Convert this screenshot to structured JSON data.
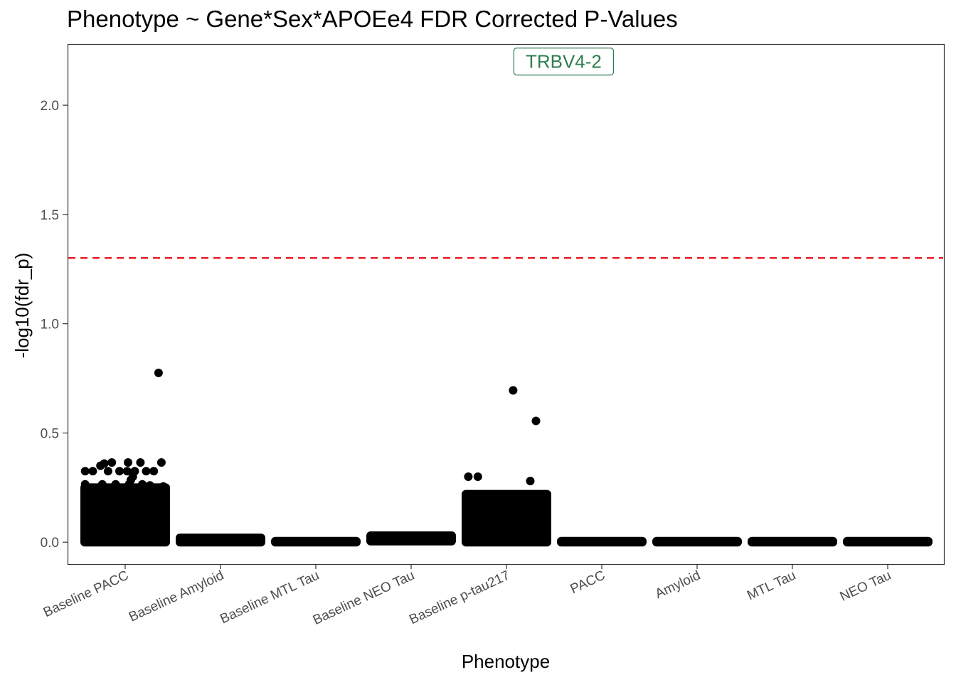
{
  "chart_data": {
    "type": "scatter",
    "title": "Phenotype ~ Gene*Sex*APOEe4 FDR Corrected P-Values",
    "xlabel": "Phenotype",
    "ylabel": "-log10(fdr_p)",
    "categories": [
      "Baseline PACC",
      "Baseline Amyloid",
      "Baseline MTL Tau",
      "Baseline NEO Tau",
      "Baseline p-tau217",
      "PACC",
      "Amyloid",
      "MTL Tau",
      "NEO Tau"
    ],
    "ylim": [
      -0.1,
      2.28
    ],
    "yticks": [
      0.0,
      0.5,
      1.0,
      1.5,
      2.0
    ],
    "ytick_labels": [
      "0.0",
      "0.5",
      "1.0",
      "1.5",
      "2.0"
    ],
    "grid": false,
    "threshold": {
      "y": 1.301,
      "color": "#e8141b",
      "style": "dashed"
    },
    "point_color": "#000000",
    "dense_bands": [
      {
        "category": "Baseline PACC",
        "ymin": 0.0,
        "ymax": 0.25
      },
      {
        "category": "Baseline Amyloid",
        "ymin": 0.0,
        "ymax": 0.02
      },
      {
        "category": "Baseline MTL Tau",
        "ymin": 0.0,
        "ymax": 0.005
      },
      {
        "category": "Baseline NEO Tau",
        "ymin": 0.005,
        "ymax": 0.03
      },
      {
        "category": "Baseline p-tau217",
        "ymin": 0.0,
        "ymax": 0.22
      },
      {
        "category": "PACC",
        "ymin": 0.0,
        "ymax": 0.005
      },
      {
        "category": "Amyloid",
        "ymin": 0.0,
        "ymax": 0.005
      },
      {
        "category": "MTL Tau",
        "ymin": 0.0,
        "ymax": 0.005
      },
      {
        "category": "NEO Tau",
        "ymin": 0.0,
        "ymax": 0.005
      }
    ],
    "points": [
      {
        "category": "Baseline PACC",
        "jitter": 0.35,
        "y": 0.775
      },
      {
        "category": "Baseline PACC",
        "jitter": 0.38,
        "y": 0.365
      },
      {
        "category": "Baseline PACC",
        "jitter": -0.22,
        "y": 0.36
      },
      {
        "category": "Baseline PACC",
        "jitter": -0.14,
        "y": 0.365
      },
      {
        "category": "Baseline PACC",
        "jitter": 0.03,
        "y": 0.365
      },
      {
        "category": "Baseline PACC",
        "jitter": 0.16,
        "y": 0.365
      },
      {
        "category": "Baseline PACC",
        "jitter": -0.26,
        "y": 0.35
      },
      {
        "category": "Baseline PACC",
        "jitter": -0.42,
        "y": 0.325
      },
      {
        "category": "Baseline PACC",
        "jitter": -0.34,
        "y": 0.325
      },
      {
        "category": "Baseline PACC",
        "jitter": -0.18,
        "y": 0.325
      },
      {
        "category": "Baseline PACC",
        "jitter": -0.06,
        "y": 0.325
      },
      {
        "category": "Baseline PACC",
        "jitter": 0.02,
        "y": 0.325
      },
      {
        "category": "Baseline PACC",
        "jitter": 0.1,
        "y": 0.325
      },
      {
        "category": "Baseline PACC",
        "jitter": 0.22,
        "y": 0.325
      },
      {
        "category": "Baseline PACC",
        "jitter": 0.3,
        "y": 0.325
      },
      {
        "category": "Baseline PACC",
        "jitter": 0.08,
        "y": 0.3
      },
      {
        "category": "Baseline PACC",
        "jitter": 0.06,
        "y": 0.285
      },
      {
        "category": "Baseline PACC",
        "jitter": -0.42,
        "y": 0.265
      },
      {
        "category": "Baseline PACC",
        "jitter": -0.24,
        "y": 0.265
      },
      {
        "category": "Baseline PACC",
        "jitter": -0.1,
        "y": 0.265
      },
      {
        "category": "Baseline PACC",
        "jitter": 0.04,
        "y": 0.265
      },
      {
        "category": "Baseline PACC",
        "jitter": 0.18,
        "y": 0.265
      },
      {
        "category": "Baseline PACC",
        "jitter": 0.26,
        "y": 0.26
      },
      {
        "category": "Baseline PACC",
        "jitter": 0.4,
        "y": 0.255
      },
      {
        "category": "Baseline p-tau217",
        "jitter": -0.4,
        "y": 0.3
      },
      {
        "category": "Baseline p-tau217",
        "jitter": -0.3,
        "y": 0.3
      },
      {
        "category": "Baseline p-tau217",
        "jitter": 0.07,
        "y": 0.695
      },
      {
        "category": "Baseline p-tau217",
        "jitter": 0.31,
        "y": 0.555
      },
      {
        "category": "Baseline p-tau217",
        "jitter": 0.25,
        "y": 0.28
      }
    ],
    "annotation": {
      "text": "TRBV4-2",
      "category_position": 5.6,
      "y": 2.2,
      "color": "#2e7d4f"
    }
  }
}
